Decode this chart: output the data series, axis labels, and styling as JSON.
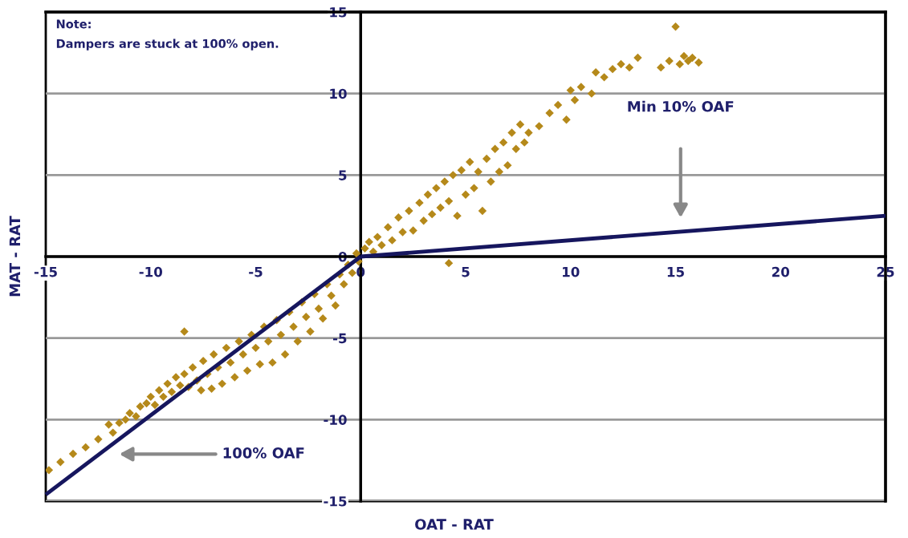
{
  "chart_data": {
    "type": "scatter",
    "xlabel": "OAT - RAT",
    "ylabel": "MAT - RAT",
    "xlim": [
      -15,
      25
    ],
    "ylim": [
      -15,
      15
    ],
    "xticks": [
      -15,
      -10,
      -5,
      0,
      5,
      10,
      15,
      20,
      25
    ],
    "yticks": [
      -15,
      -10,
      -5,
      0,
      5,
      10,
      15
    ],
    "grid": "y",
    "series": [
      {
        "color": "#b5891a",
        "marker": "diamond",
        "x": [
          -14.85,
          -14.3,
          -13.7,
          -13.1,
          -12.5,
          -12,
          -11.8,
          -11.5,
          -11.2,
          -11,
          -10.7,
          -10.5,
          -10.2,
          -10,
          -9.8,
          -9.6,
          -9.4,
          -9.2,
          -9,
          -8.8,
          -8.6,
          -8.4,
          -8.4,
          -8.2,
          -8,
          -7.8,
          -7.6,
          -7.5,
          -7.3,
          -7.1,
          -7,
          -6.8,
          -6.6,
          -6.4,
          -6.2,
          -6,
          -5.8,
          -5.6,
          -5.4,
          -5.2,
          -5,
          -4.8,
          -4.6,
          -4.4,
          -4.2,
          -4,
          -3.8,
          -3.6,
          -3.4,
          -3.2,
          -3,
          -2.8,
          -2.6,
          -2.4,
          -2.2,
          -2,
          -1.8,
          -1.6,
          -1.4,
          -1.2,
          -1,
          -0.8,
          -0.6,
          -0.4,
          -0.2,
          -0.1,
          0.2,
          0.4,
          0.6,
          0.8,
          1,
          1.3,
          1.5,
          1.8,
          2,
          2.3,
          2.5,
          2.8,
          3,
          3.2,
          3.4,
          3.6,
          3.8,
          4,
          4.2,
          4.2,
          4.4,
          4.6,
          4.8,
          5,
          5.2,
          5.4,
          5.6,
          5.8,
          6,
          6.2,
          6.4,
          6.6,
          6.8,
          7,
          7.2,
          7.4,
          7.6,
          7.8,
          8,
          8.5,
          9,
          9.4,
          9.8,
          10,
          10.2,
          10.5,
          11,
          11.2,
          11.6,
          12,
          12.4,
          12.8,
          13.2,
          14.3,
          14.7,
          15,
          15.2,
          15.4,
          15.6,
          15.8,
          16.1
        ],
        "values": [
          -13.1,
          -12.6,
          -12.1,
          -11.7,
          -11.2,
          -10.3,
          -10.8,
          -10.2,
          -10.0,
          -9.6,
          -9.8,
          -9.2,
          -9.0,
          -8.6,
          -9.1,
          -8.2,
          -8.6,
          -7.8,
          -8.3,
          -7.4,
          -7.9,
          -4.6,
          -7.2,
          -8.0,
          -6.8,
          -7.6,
          -8.2,
          -6.4,
          -7.2,
          -8.1,
          -6.0,
          -6.8,
          -7.8,
          -5.6,
          -6.5,
          -7.4,
          -5.2,
          -6.0,
          -7.0,
          -4.8,
          -5.6,
          -6.6,
          -4.3,
          -5.2,
          -6.5,
          -3.9,
          -4.8,
          -6.0,
          -3.4,
          -4.3,
          -5.2,
          -2.8,
          -3.7,
          -4.6,
          -2.3,
          -3.2,
          -3.8,
          -1.7,
          -2.4,
          -3.0,
          -1.1,
          -1.7,
          -0.5,
          -1.0,
          0.2,
          -0.3,
          0.5,
          0.9,
          0.3,
          1.2,
          0.7,
          1.8,
          1.0,
          2.4,
          1.5,
          2.8,
          1.6,
          3.3,
          2.2,
          3.8,
          2.6,
          4.2,
          3.0,
          4.6,
          -0.4,
          3.4,
          5.0,
          2.5,
          5.3,
          3.8,
          5.8,
          4.2,
          5.2,
          2.8,
          6.0,
          4.6,
          6.6,
          5.2,
          7.0,
          5.6,
          7.6,
          6.6,
          8.1,
          7.0,
          7.6,
          8.0,
          8.8,
          9.3,
          8.4,
          10.2,
          9.6,
          10.4,
          10.0,
          11.3,
          11.0,
          11.5,
          11.8,
          11.6,
          12.2,
          11.6,
          12.0,
          14.1,
          11.8,
          12.3,
          12.0,
          12.2,
          11.9
        ]
      },
      {
        "type": "line",
        "color": "#16165e",
        "x": [
          -15,
          0
        ],
        "values": [
          -14.6,
          0
        ]
      },
      {
        "type": "line",
        "color": "#16165e",
        "x": [
          0,
          25
        ],
        "values": [
          0,
          2.5
        ]
      }
    ],
    "annotations": [
      "Note:",
      "Dampers are stuck at 100% open.",
      "Min 10% OAF",
      "100% OAF"
    ]
  }
}
